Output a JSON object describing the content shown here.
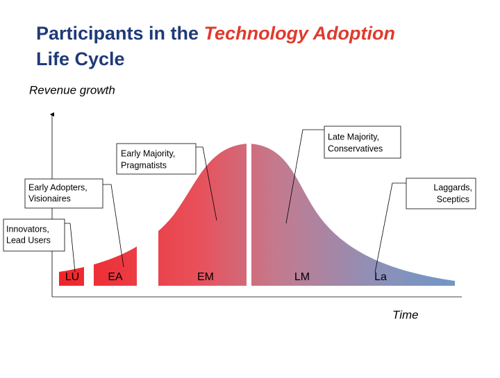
{
  "title": {
    "prefix": "Participants in the ",
    "highlight": "Technology Adoption",
    "line2": "Life Cycle"
  },
  "axes": {
    "y_label": "Revenue growth",
    "x_label": "Time"
  },
  "segments": [
    "LU",
    "EA",
    "EM",
    "LM",
    "La"
  ],
  "callouts": [
    {
      "line1": "Innovators,",
      "line2": "Lead Users"
    },
    {
      "line1": "Early Adopters,",
      "line2": "Visionaires"
    },
    {
      "line1": "Early Majority,",
      "line2": "Pragmatists"
    },
    {
      "line1": "Late Majority,",
      "line2": "Conservatives"
    },
    {
      "line1": "Laggards,",
      "line2": "Sceptics"
    }
  ]
}
